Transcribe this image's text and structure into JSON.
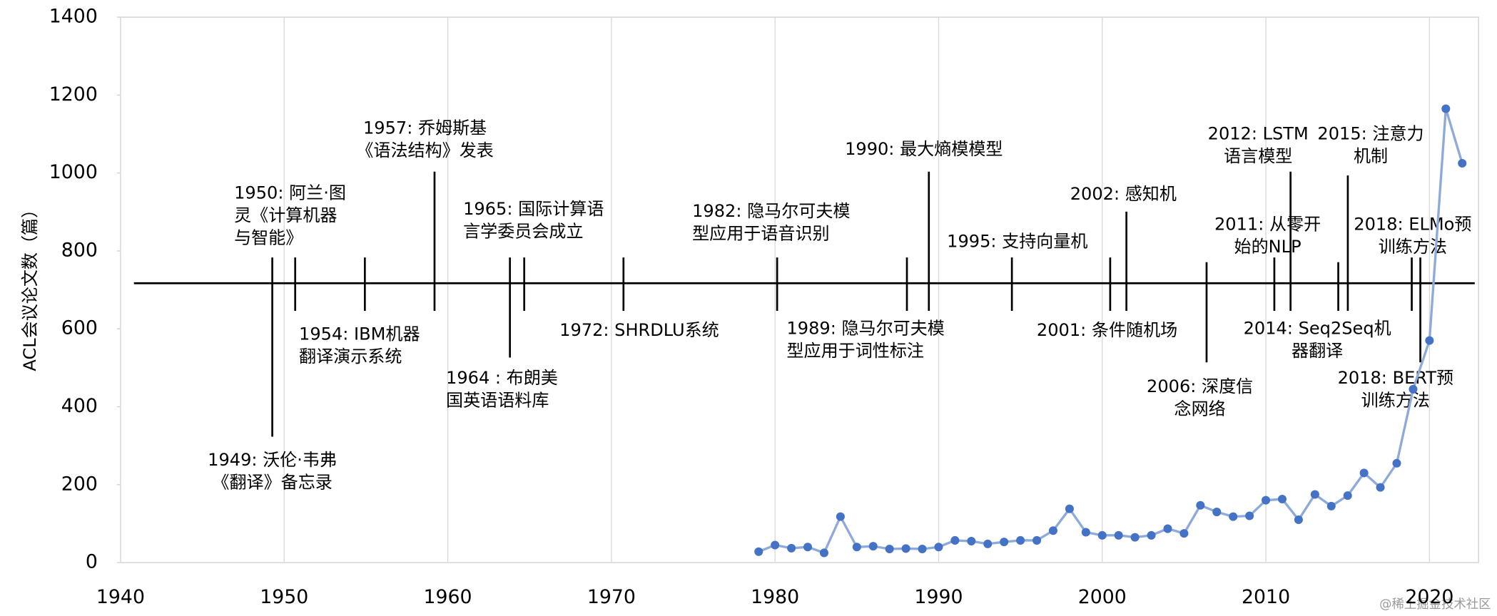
{
  "chart_data": {
    "type": "line",
    "y_label": "ACL会议论文数（篇）",
    "x": [
      1979,
      1980,
      1981,
      1982,
      1983,
      1984,
      1985,
      1986,
      1987,
      1988,
      1989,
      1990,
      1991,
      1992,
      1993,
      1994,
      1995,
      1996,
      1997,
      1998,
      1999,
      2000,
      2001,
      2002,
      2003,
      2004,
      2005,
      2006,
      2007,
      2008,
      2009,
      2010,
      2011,
      2012,
      2013,
      2014,
      2015,
      2016,
      2017,
      2018,
      2019,
      2020,
      2021,
      2022
    ],
    "values": [
      28,
      45,
      37,
      40,
      25,
      118,
      40,
      42,
      35,
      36,
      35,
      40,
      57,
      55,
      48,
      53,
      57,
      57,
      82,
      138,
      78,
      70,
      70,
      65,
      70,
      87,
      75,
      147,
      130,
      118,
      120,
      160,
      163,
      110,
      175,
      145,
      172,
      230,
      193,
      255,
      445,
      570,
      1165,
      1025
    ],
    "line_color": "#8eaadb",
    "marker_color": "#4472c4",
    "xlim": [
      1940,
      2023
    ],
    "xticks": [
      1940,
      1950,
      1960,
      1970,
      1980,
      1990,
      2000,
      2010,
      2020
    ],
    "ylim": [
      0,
      1400
    ],
    "yticks": [
      0,
      200,
      400,
      600,
      800,
      1000,
      1200,
      1400
    ],
    "grid": true,
    "annotations": [
      {
        "lines": [
          "1949: 沃伦·韦弗",
          "《翻译》备忘录"
        ]
      },
      {
        "lines": [
          "1950: 阿兰·图",
          "灵《计算机器",
          "与智能》"
        ]
      },
      {
        "lines": [
          "1954: IBM机器",
          "翻译演示系统"
        ]
      },
      {
        "lines": [
          "1957: 乔姆斯基",
          "《语法结构》发表"
        ]
      },
      {
        "lines": [
          "1964 : 布朗美",
          "国英语语料库"
        ]
      },
      {
        "lines": [
          "1965: 国际计算语",
          "言学委员会成立"
        ]
      },
      {
        "lines": [
          "1972: SHRDLU系统"
        ]
      },
      {
        "lines": [
          "1982: 隐马尔可夫模",
          "型应用于语音识别"
        ]
      },
      {
        "lines": [
          "1989: 隐马尔可夫模",
          "型应用于词性标注"
        ]
      },
      {
        "lines": [
          "1990: 最大熵模模型"
        ]
      },
      {
        "lines": [
          "1995: 支持向量机"
        ]
      },
      {
        "lines": [
          "2001: 条件随机场"
        ]
      },
      {
        "lines": [
          "2002: 感知机"
        ]
      },
      {
        "lines": [
          "2006: 深度信",
          "念网络"
        ]
      },
      {
        "lines": [
          "2011: 从零开",
          "始的NLP"
        ]
      },
      {
        "lines": [
          "2012: LSTM",
          "语言模型"
        ]
      },
      {
        "lines": [
          "2014: Seq2Seq机",
          "器翻译"
        ]
      },
      {
        "lines": [
          "2015: 注意力",
          "机制"
        ]
      },
      {
        "lines": [
          "2018: ELMo预",
          "训练方法"
        ]
      },
      {
        "lines": [
          "2018: BERT预",
          "训练方法"
        ]
      }
    ],
    "watermark": "@稀土掘金技术社区"
  }
}
